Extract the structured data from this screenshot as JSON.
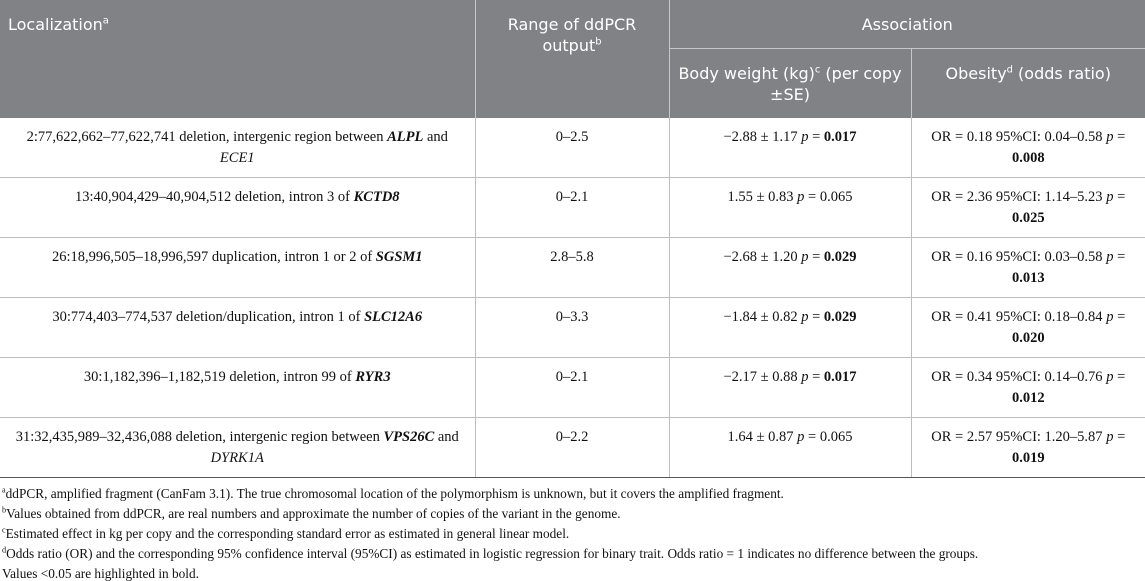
{
  "table": {
    "headers": {
      "localization": [
        {
          "text": "Localization"
        },
        {
          "text": "a",
          "sup": true
        }
      ],
      "range": [
        {
          "text": "Range of ddPCR output"
        },
        {
          "text": "b",
          "sup": true
        }
      ],
      "association": [
        {
          "text": "Association"
        }
      ],
      "body_weight": [
        {
          "text": "Body weight (kg)"
        },
        {
          "text": "c",
          "sup": true
        },
        {
          "text": " (per copy ±SE)"
        }
      ],
      "obesity": [
        {
          "text": "Obesity"
        },
        {
          "text": "d",
          "sup": true
        },
        {
          "text": " (odds ratio)"
        }
      ]
    },
    "rows": [
      [
        [
          {
            "text": "2:77,622,662–77,622,741 deletion, intergenic region between "
          },
          {
            "text": "ALPL",
            "bold": true,
            "italic": true
          },
          {
            "text": " and "
          },
          {
            "text": "ECE1",
            "italic": true
          }
        ],
        [
          {
            "text": "0–2.5"
          }
        ],
        [
          {
            "text": "−2.88 ± 1.17 "
          },
          {
            "text": "p",
            "italic": true
          },
          {
            "text": " = "
          },
          {
            "text": "0.017",
            "bold": true
          }
        ],
        [
          {
            "text": "OR = 0.18 95%CI: 0.04–0.58 "
          },
          {
            "text": "p",
            "italic": true
          },
          {
            "text": " = "
          },
          {
            "text": "0.008",
            "bold": true
          }
        ]
      ],
      [
        [
          {
            "text": "13:40,904,429–40,904,512 deletion, intron 3 of "
          },
          {
            "text": "KCTD8",
            "bold": true,
            "italic": true
          }
        ],
        [
          {
            "text": "0–2.1"
          }
        ],
        [
          {
            "text": "1.55 ± 0.83 "
          },
          {
            "text": "p",
            "italic": true
          },
          {
            "text": " = 0.065"
          }
        ],
        [
          {
            "text": "OR = 2.36 95%CI: 1.14–5.23 "
          },
          {
            "text": "p",
            "italic": true
          },
          {
            "text": " = "
          },
          {
            "text": "0.025",
            "bold": true
          }
        ]
      ],
      [
        [
          {
            "text": "26:18,996,505–18,996,597 duplication, intron 1 or 2 of "
          },
          {
            "text": "SGSM1",
            "bold": true,
            "italic": true
          }
        ],
        [
          {
            "text": "2.8–5.8"
          }
        ],
        [
          {
            "text": "−2.68 ± 1.20 "
          },
          {
            "text": "p",
            "italic": true
          },
          {
            "text": " = "
          },
          {
            "text": "0.029",
            "bold": true
          }
        ],
        [
          {
            "text": "OR = 0.16 95%CI: 0.03–0.58 "
          },
          {
            "text": "p",
            "italic": true
          },
          {
            "text": " = "
          },
          {
            "text": "0.013",
            "bold": true
          }
        ]
      ],
      [
        [
          {
            "text": "30:774,403–774,537 deletion/duplication, intron 1 of "
          },
          {
            "text": "SLC12A6",
            "bold": true,
            "italic": true
          }
        ],
        [
          {
            "text": "0–3.3"
          }
        ],
        [
          {
            "text": "−1.84 ± 0.82 "
          },
          {
            "text": "p",
            "italic": true
          },
          {
            "text": " = "
          },
          {
            "text": "0.029",
            "bold": true
          }
        ],
        [
          {
            "text": "OR = 0.41 95%CI: 0.18–0.84 "
          },
          {
            "text": "p",
            "italic": true
          },
          {
            "text": " = "
          },
          {
            "text": "0.020",
            "bold": true
          }
        ]
      ],
      [
        [
          {
            "text": "30:1,182,396–1,182,519 deletion, intron 99 of "
          },
          {
            "text": "RYR3",
            "bold": true,
            "italic": true
          }
        ],
        [
          {
            "text": "0–2.1"
          }
        ],
        [
          {
            "text": "−2.17 ± 0.88 "
          },
          {
            "text": "p",
            "italic": true
          },
          {
            "text": " = "
          },
          {
            "text": "0.017",
            "bold": true
          }
        ],
        [
          {
            "text": "OR = 0.34 95%CI: 0.14–0.76 "
          },
          {
            "text": "p",
            "italic": true
          },
          {
            "text": " = "
          },
          {
            "text": "0.012",
            "bold": true
          }
        ]
      ],
      [
        [
          {
            "text": "31:32,435,989–32,436,088 deletion, intergenic region between "
          },
          {
            "text": "VPS26C",
            "bold": true,
            "italic": true
          },
          {
            "text": " and "
          },
          {
            "text": "DYRK1A",
            "italic": true
          }
        ],
        [
          {
            "text": "0–2.2"
          }
        ],
        [
          {
            "text": "1.64 ± 0.87 "
          },
          {
            "text": "p",
            "italic": true
          },
          {
            "text": " = 0.065"
          }
        ],
        [
          {
            "text": "OR = 2.57 95%CI: 1.20–5.87 "
          },
          {
            "text": "p",
            "italic": true
          },
          {
            "text": " = "
          },
          {
            "text": "0.019",
            "bold": true
          }
        ]
      ]
    ],
    "footnotes": [
      [
        {
          "text": "a",
          "sup": true
        },
        {
          "text": "ddPCR, amplified fragment (CanFam 3.1). The true chromosomal location of the polymorphism is unknown, but it covers the amplified fragment."
        }
      ],
      [
        {
          "text": "b",
          "sup": true
        },
        {
          "text": "Values obtained from ddPCR, are real numbers and approximate the number of copies of the variant in the genome."
        }
      ],
      [
        {
          "text": "c",
          "sup": true
        },
        {
          "text": "Estimated effect in kg per copy and the corresponding standard error as estimated in general linear model."
        }
      ],
      [
        {
          "text": "d",
          "sup": true
        },
        {
          "text": "Odds ratio (OR) and the corresponding 95% confidence interval (95%CI) as estimated in logistic regression for binary trait. Odds ratio = 1 indicates no difference between the groups."
        }
      ],
      [
        {
          "text": "Values <0.05 are highlighted in bold."
        }
      ]
    ]
  }
}
